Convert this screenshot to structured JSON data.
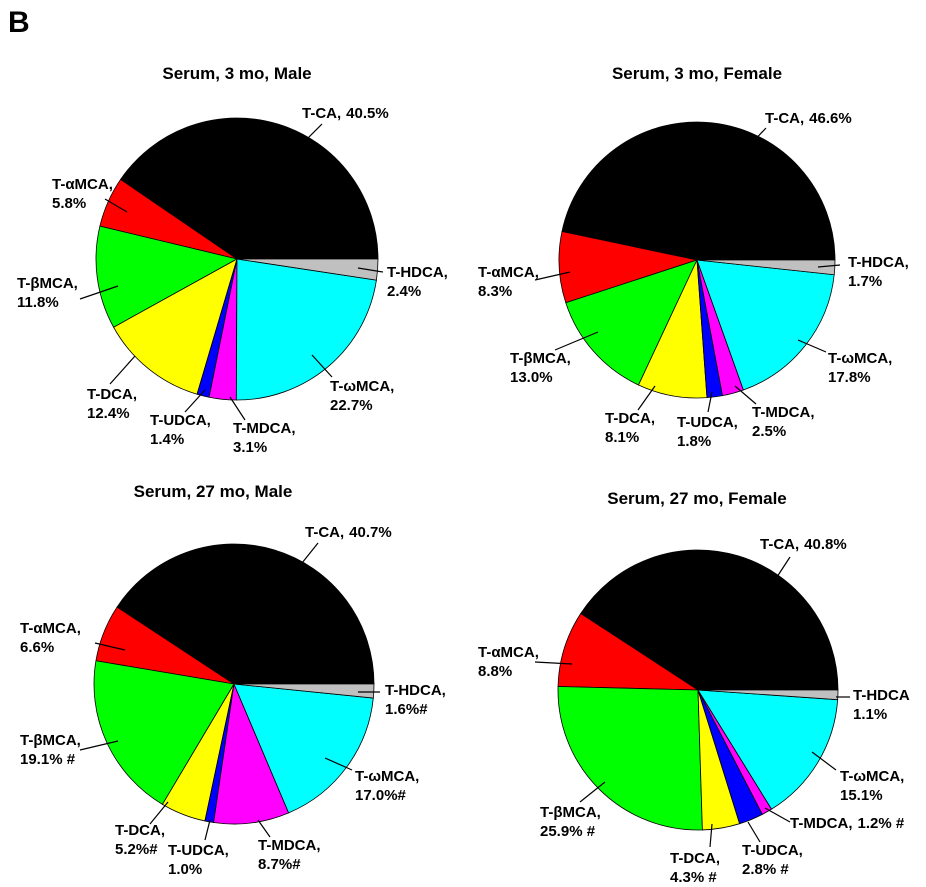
{
  "panel_label": "B",
  "chart_data": [
    {
      "type": "pie",
      "title": "Serum, 3 mo, Male",
      "categories": [
        "T-CA,",
        "T-αMCA,",
        "T-βMCA,",
        "T-DCA,",
        "T-UDCA,",
        "T-MDCA,",
        "T-ωMCA,",
        "T-HDCA,"
      ],
      "values": [
        40.5,
        5.8,
        11.8,
        12.4,
        1.4,
        3.1,
        22.7,
        2.4
      ],
      "value_labels": [
        "40.5%",
        "5.8%",
        "11.8%",
        "12.4%",
        "1.4%",
        "3.1%",
        "22.7%",
        "2.4%"
      ],
      "colors": [
        "#000000",
        "#ff0000",
        "#00ff00",
        "#ffff00",
        "#0000ff",
        "#ff00ff",
        "#00ffff",
        "#c0c0c0"
      ]
    },
    {
      "type": "pie",
      "title": "Serum, 3 mo, Female",
      "categories": [
        "T-CA,",
        "T-αMCA,",
        "T-βMCA,",
        "T-DCA,",
        "T-UDCA,",
        "T-MDCA,",
        "T-ωMCA,",
        "T-HDCA,"
      ],
      "values": [
        46.6,
        8.3,
        13.0,
        8.1,
        1.8,
        2.5,
        17.8,
        1.7
      ],
      "value_labels": [
        "46.6%",
        "8.3%",
        "13.0%",
        "8.1%",
        "1.8%",
        "2.5%",
        "17.8%",
        "1.7%"
      ],
      "colors": [
        "#000000",
        "#ff0000",
        "#00ff00",
        "#ffff00",
        "#0000ff",
        "#ff00ff",
        "#00ffff",
        "#c0c0c0"
      ]
    },
    {
      "type": "pie",
      "title": "Serum, 27 mo, Male",
      "categories": [
        "T-CA,",
        "T-αMCA,",
        "T-βMCA,",
        "T-DCA,",
        "T-UDCA,",
        "T-MDCA,",
        "T-ωMCA,",
        "T-HDCA,"
      ],
      "values": [
        40.7,
        6.6,
        19.1,
        5.2,
        1.0,
        8.7,
        17.0,
        1.6
      ],
      "value_labels": [
        "40.7%",
        "6.6%",
        "19.1% #",
        "5.2%#",
        "1.0%",
        "8.7%#",
        "17.0%#",
        "1.6%#"
      ],
      "colors": [
        "#000000",
        "#ff0000",
        "#00ff00",
        "#ffff00",
        "#0000ff",
        "#ff00ff",
        "#00ffff",
        "#c0c0c0"
      ]
    },
    {
      "type": "pie",
      "title": "Serum, 27 mo, Female",
      "categories": [
        "T-CA,",
        "T-αMCA,",
        "T-βMCA,",
        "T-DCA,",
        "T-UDCA,",
        "T-MDCA,",
        "T-ωMCA,",
        "T-HDCA"
      ],
      "values": [
        40.8,
        8.8,
        25.9,
        4.3,
        2.8,
        1.2,
        15.1,
        1.1
      ],
      "value_labels": [
        "40.8%",
        "8.8%",
        "25.9% #",
        "4.3% #",
        "2.8% #",
        "1.2% #",
        "15.1%",
        "1.1%"
      ],
      "colors": [
        "#000000",
        "#ff0000",
        "#00ff00",
        "#ffff00",
        "#0000ff",
        "#ff00ff",
        "#00ffff",
        "#c0c0c0"
      ]
    }
  ]
}
